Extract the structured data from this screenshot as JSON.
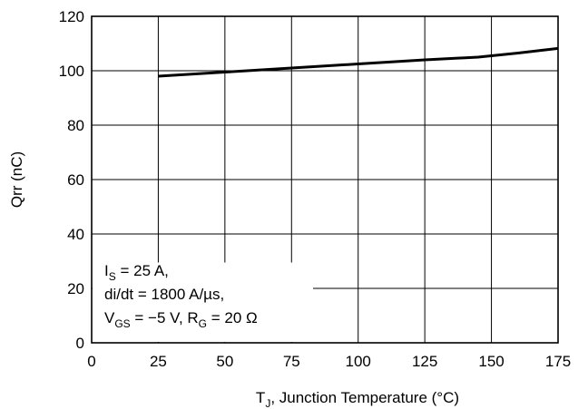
{
  "chart_data": {
    "type": "line",
    "xlabel": {
      "main": "T",
      "sub": "J",
      "rest": ", Junction Temperature (°C)"
    },
    "ylabel": "Qrr (nC)",
    "xlim": [
      0,
      175
    ],
    "ylim": [
      0,
      120
    ],
    "x_ticks": [
      0,
      25,
      50,
      75,
      100,
      125,
      150,
      175
    ],
    "y_ticks": [
      0,
      20,
      40,
      60,
      80,
      100,
      120
    ],
    "grid": true,
    "series": [
      {
        "x": [
          25,
          50,
          75,
          100,
          125,
          145,
          150,
          160,
          175
        ],
        "y": [
          98,
          99.5,
          101,
          102.5,
          104,
          105,
          105.5,
          106.5,
          108.2
        ]
      }
    ],
    "annotation": {
      "line1": {
        "pre": "I",
        "sub": "S",
        "post": " = 25 A,"
      },
      "line2": {
        "text": "di/dt = 1800 A/µs,"
      },
      "line3": {
        "pre": "V",
        "sub1": "GS",
        "mid": " = −5 V, R",
        "sub2": "G",
        "post": " = 20 Ω"
      }
    }
  }
}
